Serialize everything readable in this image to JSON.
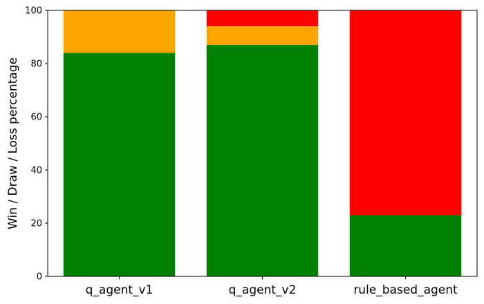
{
  "chart_data": {
    "type": "bar",
    "stacked": true,
    "title": "",
    "xlabel": "",
    "ylabel": "Win / Draw / Loss percentage",
    "ylim": [
      0,
      100
    ],
    "yticks": [
      0,
      20,
      40,
      60,
      80,
      100
    ],
    "grid": false,
    "categories": [
      "q_agent_v1",
      "q_agent_v2",
      "rule_based_agent"
    ],
    "series": [
      {
        "values": [
          84,
          87,
          23
        ],
        "color": "#008000"
      },
      {
        "values": [
          16,
          7,
          0
        ],
        "color": "#FFA500"
      },
      {
        "values": [
          0,
          6,
          77
        ],
        "color": "#FF0000"
      }
    ]
  }
}
